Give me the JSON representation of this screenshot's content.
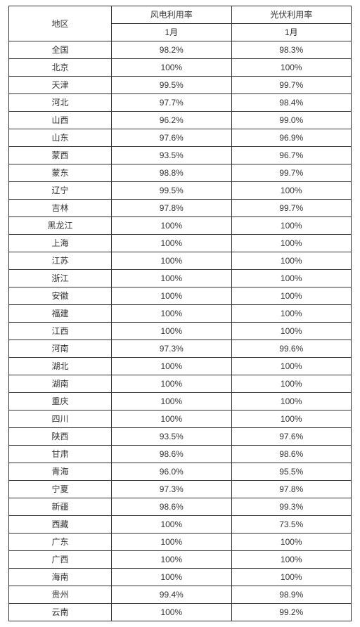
{
  "table": {
    "type": "table",
    "header": {
      "region_label": "地区",
      "col1_label": "风电利用率",
      "col2_label": "光伏利用率",
      "sub_label": "1月"
    },
    "columns": [
      "地区",
      "风电利用率",
      "光伏利用率"
    ],
    "rows": [
      {
        "region": "全国",
        "wind": "98.2%",
        "solar": "98.3%"
      },
      {
        "region": "北京",
        "wind": "100%",
        "solar": "100%"
      },
      {
        "region": "天津",
        "wind": "99.5%",
        "solar": "99.7%"
      },
      {
        "region": "河北",
        "wind": "97.7%",
        "solar": "98.4%"
      },
      {
        "region": "山西",
        "wind": "96.2%",
        "solar": "99.0%"
      },
      {
        "region": "山东",
        "wind": "97.6%",
        "solar": "96.9%"
      },
      {
        "region": "蒙西",
        "wind": "93.5%",
        "solar": "96.7%"
      },
      {
        "region": "蒙东",
        "wind": "98.8%",
        "solar": "99.7%"
      },
      {
        "region": "辽宁",
        "wind": "99.5%",
        "solar": "100%"
      },
      {
        "region": "吉林",
        "wind": "97.8%",
        "solar": "99.7%"
      },
      {
        "region": "黑龙江",
        "wind": "100%",
        "solar": "100%"
      },
      {
        "region": "上海",
        "wind": "100%",
        "solar": "100%"
      },
      {
        "region": "江苏",
        "wind": "100%",
        "solar": "100%"
      },
      {
        "region": "浙江",
        "wind": "100%",
        "solar": "100%"
      },
      {
        "region": "安徽",
        "wind": "100%",
        "solar": "100%"
      },
      {
        "region": "福建",
        "wind": "100%",
        "solar": "100%"
      },
      {
        "region": "江西",
        "wind": "100%",
        "solar": "100%"
      },
      {
        "region": "河南",
        "wind": "97.3%",
        "solar": "99.6%"
      },
      {
        "region": "湖北",
        "wind": "100%",
        "solar": "100%"
      },
      {
        "region": "湖南",
        "wind": "100%",
        "solar": "100%"
      },
      {
        "region": "重庆",
        "wind": "100%",
        "solar": "100%"
      },
      {
        "region": "四川",
        "wind": "100%",
        "solar": "100%"
      },
      {
        "region": "陕西",
        "wind": "93.5%",
        "solar": "97.6%"
      },
      {
        "region": "甘肃",
        "wind": "98.6%",
        "solar": "98.6%"
      },
      {
        "region": "青海",
        "wind": "96.0%",
        "solar": "95.5%"
      },
      {
        "region": "宁夏",
        "wind": "97.3%",
        "solar": "97.8%"
      },
      {
        "region": "新疆",
        "wind": "98.6%",
        "solar": "99.3%"
      },
      {
        "region": "西藏",
        "wind": "100%",
        "solar": "73.5%"
      },
      {
        "region": "广东",
        "wind": "100%",
        "solar": "100%"
      },
      {
        "region": "广西",
        "wind": "100%",
        "solar": "100%"
      },
      {
        "region": "海南",
        "wind": "100%",
        "solar": "100%"
      },
      {
        "region": "贵州",
        "wind": "99.4%",
        "solar": "98.9%"
      },
      {
        "region": "云南",
        "wind": "100%",
        "solar": "99.2%"
      }
    ],
    "style": {
      "border_color": "#333333",
      "text_color": "#333333",
      "background_color": "#ffffff",
      "font_size_pt": 9,
      "col_widths_pct": [
        30,
        35,
        35
      ],
      "alignment": "center"
    }
  }
}
